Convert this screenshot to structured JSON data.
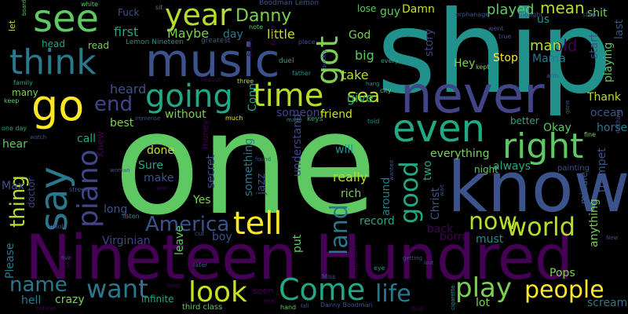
{
  "palette": {
    "background": "#000000",
    "purple": "#440154",
    "indigo": "#3b528b",
    "teal": "#21918c",
    "green": "#5ec962",
    "yellow": "#fde725"
  },
  "words": [
    {
      "text": "one",
      "color": "#5ec962"
    },
    {
      "text": "ship",
      "color": "#21918c"
    },
    {
      "text": "Nineteen Hundred",
      "color": "#440154"
    },
    {
      "text": "know",
      "color": "#3b528b"
    },
    {
      "text": "music",
      "color": "#3b528b"
    },
    {
      "text": "never",
      "color": "#414487"
    },
    {
      "text": "think",
      "color": "#2a788e"
    },
    {
      "text": "see",
      "color": "#5ec962"
    },
    {
      "text": "go",
      "color": "#fde725"
    },
    {
      "text": "say",
      "color": "#2a788e"
    },
    {
      "text": "even",
      "color": "#22a884"
    },
    {
      "text": "right",
      "color": "#5ec962"
    },
    {
      "text": "year",
      "color": "#b5de2b"
    },
    {
      "text": "going",
      "color": "#22a884"
    },
    {
      "text": "time",
      "color": "#b5de2b"
    },
    {
      "text": "got",
      "color": "#7ad151"
    },
    {
      "text": "tell",
      "color": "#fde725"
    },
    {
      "text": "piano",
      "color": "#414487"
    },
    {
      "text": "Come",
      "color": "#22a884"
    },
    {
      "text": "look",
      "color": "#c8e020"
    },
    {
      "text": "play",
      "color": "#7ad151"
    },
    {
      "text": "people",
      "color": "#fde725"
    },
    {
      "text": "want",
      "color": "#2a788e"
    },
    {
      "text": "world",
      "color": "#b5de2b"
    },
    {
      "text": "now",
      "color": "#b5de2b"
    },
    {
      "text": "good",
      "color": "#22a884"
    },
    {
      "text": "land",
      "color": "#2a788e"
    },
    {
      "text": "America",
      "color": "#3b528b"
    },
    {
      "text": "Danny",
      "color": "#7ad151"
    },
    {
      "text": "end",
      "color": "#414487"
    },
    {
      "text": "thing",
      "color": "#b5de2b"
    },
    {
      "text": "name",
      "color": "#2a788e"
    },
    {
      "text": "life",
      "color": "#2a788e"
    },
    {
      "text": "sea",
      "color": "#c8e020"
    },
    {
      "text": "played",
      "color": "#5ec962"
    },
    {
      "text": "mean",
      "color": "#b5de2b"
    },
    {
      "text": "old",
      "color": "#440154"
    },
    {
      "text": "man",
      "color": "#b5de2b"
    },
    {
      "text": "Maybe",
      "color": "#7ad151"
    },
    {
      "text": "first",
      "color": "#22a884"
    },
    {
      "text": "day",
      "color": "#2a788e"
    },
    {
      "text": "little",
      "color": "#c8e020"
    },
    {
      "text": "big",
      "color": "#5ec962"
    },
    {
      "text": "take",
      "color": "#b5de2b"
    },
    {
      "text": "give",
      "color": "#22a884"
    },
    {
      "text": "heard",
      "color": "#3b528b"
    },
    {
      "text": "Conn",
      "color": "#22a884"
    },
    {
      "text": "someone",
      "color": "#414487"
    },
    {
      "text": "friend",
      "color": "#c8e020"
    },
    {
      "text": "understand",
      "color": "#414487"
    },
    {
      "text": "something",
      "color": "#2a788e"
    },
    {
      "text": "jazz",
      "color": "#414487"
    },
    {
      "text": "really",
      "color": "#b5de2b"
    },
    {
      "text": "everything",
      "color": "#7ad151"
    },
    {
      "text": "always",
      "color": "#22a884"
    },
    {
      "text": "Okay",
      "color": "#5ec962"
    },
    {
      "text": "ocean",
      "color": "#3b528b"
    },
    {
      "text": "horse",
      "color": "#2a788e"
    },
    {
      "text": "Thank",
      "color": "#b5de2b"
    },
    {
      "text": "trumpet",
      "color": "#3b528b"
    },
    {
      "text": "anything",
      "color": "#7ad151"
    },
    {
      "text": "playing",
      "color": "#5ec962"
    },
    {
      "text": "last",
      "color": "#3b528b"
    },
    {
      "text": "Stop",
      "color": "#fde725"
    },
    {
      "text": "Hey",
      "color": "#7ad151"
    },
    {
      "text": "guy",
      "color": "#5ec962"
    },
    {
      "text": "Damn",
      "color": "#c8e020"
    },
    {
      "text": "God",
      "color": "#7ad151"
    },
    {
      "text": "story",
      "color": "#414487"
    },
    {
      "text": "us",
      "color": "#21918c"
    },
    {
      "text": "Mama",
      "color": "#2a788e"
    },
    {
      "text": "shit",
      "color": "#7ad151"
    },
    {
      "text": "start",
      "color": "#3b528b"
    },
    {
      "text": "Sure",
      "color": "#22a884"
    },
    {
      "text": "make",
      "color": "#3b528b"
    },
    {
      "text": "done",
      "color": "#c8e020"
    },
    {
      "text": "Yes",
      "color": "#7ad151"
    },
    {
      "text": "secret",
      "color": "#3b528b"
    },
    {
      "text": "rich",
      "color": "#7ad151"
    },
    {
      "text": "long",
      "color": "#3b528b"
    },
    {
      "text": "Max",
      "color": "#3b528b"
    },
    {
      "text": "call",
      "color": "#22a884"
    },
    {
      "text": "hear",
      "color": "#5ec962"
    },
    {
      "text": "best",
      "color": "#7ad151"
    },
    {
      "text": "without",
      "color": "#7ad151"
    },
    {
      "text": "will",
      "color": "#21918c"
    },
    {
      "text": "Virginian",
      "color": "#414487"
    },
    {
      "text": "put",
      "color": "#5ec962"
    },
    {
      "text": "record",
      "color": "#22a884"
    },
    {
      "text": "back",
      "color": "#440154"
    },
    {
      "text": "born",
      "color": "#440154"
    },
    {
      "text": "must",
      "color": "#21918c"
    },
    {
      "text": "two",
      "color": "#22a884"
    },
    {
      "text": "Christ",
      "color": "#3b528b"
    },
    {
      "text": "around",
      "color": "#2a788e"
    },
    {
      "text": "boy",
      "color": "#3b528b"
    },
    {
      "text": "leave",
      "color": "#5ec962"
    },
    {
      "text": "crazy",
      "color": "#7ad151"
    },
    {
      "text": "hell",
      "color": "#2a788e"
    },
    {
      "text": "Please",
      "color": "#2a788e"
    },
    {
      "text": "lot",
      "color": "#7ad151"
    },
    {
      "text": "Pops",
      "color": "#7ad151"
    },
    {
      "text": "scream",
      "color": "#2a788e"
    },
    {
      "text": "infinite",
      "color": "#22a884"
    },
    {
      "text": "third class",
      "color": "#5ec962"
    },
    {
      "text": "seen",
      "color": "#440154"
    },
    {
      "text": "Captain",
      "color": "#440154"
    },
    {
      "text": "doctor",
      "color": "#414487"
    },
    {
      "text": "Fuck",
      "color": "#3b528b"
    },
    {
      "text": "money",
      "color": "#440154"
    },
    {
      "text": "Knew",
      "color": "#440154"
    },
    {
      "text": "night",
      "color": "#5ec962"
    },
    {
      "text": "better",
      "color": "#22a884"
    },
    {
      "text": "middle",
      "color": "#3b528b"
    },
    {
      "text": "painting",
      "color": "#3b528b"
    },
    {
      "text": "read",
      "color": "#7ad151"
    },
    {
      "text": "head",
      "color": "#22a884"
    },
    {
      "text": "many",
      "color": "#7ad151"
    },
    {
      "text": "let",
      "color": "#b5de2b"
    },
    {
      "text": "lose",
      "color": "#5ec962"
    },
    {
      "text": "Boodman Lemon",
      "color": "#3b528b"
    },
    {
      "text": "Lemon Nineteen",
      "color": "#21918c"
    },
    {
      "text": "greatest",
      "color": "#3b528b"
    },
    {
      "text": "note",
      "color": "#5ec962"
    },
    {
      "text": "duel",
      "color": "#22a884"
    },
    {
      "text": "father",
      "color": "#21918c"
    },
    {
      "text": "reason",
      "color": "#440154"
    },
    {
      "text": "three",
      "color": "#b5de2b"
    },
    {
      "text": "much",
      "color": "#fde725"
    },
    {
      "text": "keys",
      "color": "#22a884"
    },
    {
      "text": "made",
      "color": "#21918c"
    },
    {
      "text": "told",
      "color": "#21918c"
    },
    {
      "text": "orphanage",
      "color": "#3b528b"
    },
    {
      "text": "step",
      "color": "#3b528b"
    },
    {
      "text": "white",
      "color": "#5ec962"
    },
    {
      "text": "sit",
      "color": "#21918c"
    },
    {
      "text": "place",
      "color": "#3b528b"
    },
    {
      "text": "Forget",
      "color": "#440154"
    },
    {
      "text": "Bravo",
      "color": "#440154"
    },
    {
      "text": "every",
      "color": "#22a884"
    },
    {
      "text": "kept",
      "color": "#7ad151"
    },
    {
      "text": "thought",
      "color": "#3b528b"
    },
    {
      "text": "went",
      "color": "#3b528b"
    },
    {
      "text": "true",
      "color": "#3b528b"
    },
    {
      "text": "arm",
      "color": "#3b528b"
    },
    {
      "text": "family",
      "color": "#22a884"
    },
    {
      "text": "keep",
      "color": "#5ec962"
    },
    {
      "text": "one day",
      "color": "#22a884"
    },
    {
      "text": "city",
      "color": "#5ec962"
    },
    {
      "text": "hang",
      "color": "#21918c"
    },
    {
      "text": "fine",
      "color": "#7ad151"
    },
    {
      "text": "nothing",
      "color": "#3b528b"
    },
    {
      "text": "immense",
      "color": "#3b528b"
    },
    {
      "text": "watch",
      "color": "#3b528b"
    },
    {
      "text": "woman",
      "color": "#3b528b"
    },
    {
      "text": "war",
      "color": "#440154"
    },
    {
      "text": "street",
      "color": "#3b528b"
    },
    {
      "text": "listen",
      "color": "#21918c"
    },
    {
      "text": "whole",
      "color": "#3b528b"
    },
    {
      "text": "cut",
      "color": "#3b528b"
    },
    {
      "text": "later",
      "color": "#3b528b"
    },
    {
      "text": "least",
      "color": "#440154"
    },
    {
      "text": "real",
      "color": "#440154"
    },
    {
      "text": "hand",
      "color": "#5ec962"
    },
    {
      "text": "Danny Boodman",
      "color": "#3b528b"
    },
    {
      "text": "Miss",
      "color": "#3b528b"
    },
    {
      "text": "eye",
      "color": "#21918c"
    },
    {
      "text": "lost",
      "color": "#3b528b"
    },
    {
      "text": "getting",
      "color": "#3b528b"
    },
    {
      "text": "cigarette",
      "color": "#21918c"
    },
    {
      "text": "find",
      "color": "#440154"
    },
    {
      "text": "believe",
      "color": "#440154"
    },
    {
      "text": "wanted",
      "color": "#3b528b"
    },
    {
      "text": "found",
      "color": "#3b528b"
    },
    {
      "text": "already",
      "color": "#3b528b"
    },
    {
      "text": "quickly",
      "color": "#3b528b"
    },
    {
      "text": "New",
      "color": "#3b528b"
    },
    {
      "text": "fall",
      "color": "#3b528b"
    },
    {
      "text": "gone",
      "color": "#3b528b"
    },
    {
      "text": "wait",
      "color": "#3b528b"
    },
    {
      "text": "five",
      "color": "#3b528b"
    },
    {
      "text": "away",
      "color": "#440154"
    },
    {
      "text": "board",
      "color": "#5ec962"
    }
  ]
}
